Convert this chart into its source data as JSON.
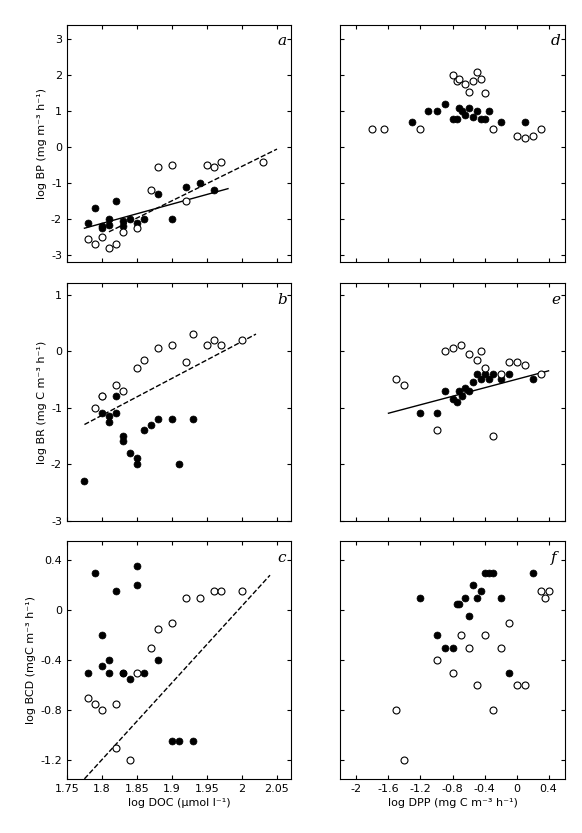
{
  "panel_a": {
    "label": "a",
    "filled": [
      [
        1.78,
        -2.1
      ],
      [
        1.79,
        -1.7
      ],
      [
        1.8,
        -2.2
      ],
      [
        1.8,
        -2.25
      ],
      [
        1.81,
        -2.0
      ],
      [
        1.81,
        -2.15
      ],
      [
        1.82,
        -1.5
      ],
      [
        1.83,
        -2.05
      ],
      [
        1.83,
        -2.2
      ],
      [
        1.84,
        -2.0
      ],
      [
        1.85,
        -2.1
      ],
      [
        1.86,
        -2.0
      ],
      [
        1.88,
        -1.3
      ],
      [
        1.9,
        -2.0
      ],
      [
        1.92,
        -1.1
      ],
      [
        1.94,
        -1.0
      ],
      [
        1.96,
        -1.2
      ]
    ],
    "open": [
      [
        1.78,
        -2.55
      ],
      [
        1.79,
        -2.7
      ],
      [
        1.8,
        -2.5
      ],
      [
        1.81,
        -2.8
      ],
      [
        1.82,
        -2.7
      ],
      [
        1.83,
        -2.35
      ],
      [
        1.85,
        -2.25
      ],
      [
        1.87,
        -1.2
      ],
      [
        1.88,
        -0.55
      ],
      [
        1.9,
        -0.5
      ],
      [
        1.92,
        -1.5
      ],
      [
        1.95,
        -0.5
      ],
      [
        1.96,
        -0.55
      ],
      [
        1.97,
        -0.4
      ],
      [
        2.03,
        -0.4
      ]
    ],
    "line_solid": {
      "x": [
        1.775,
        1.98
      ],
      "y": [
        -2.25,
        -1.15
      ]
    },
    "line_dashed": {
      "x": [
        1.81,
        2.05
      ],
      "y": [
        -2.35,
        -0.05
      ]
    },
    "xlim": [
      1.75,
      2.07
    ],
    "ylim": [
      -3.2,
      3.4
    ],
    "yticks": [
      -3,
      -2,
      -1,
      0,
      1,
      2,
      3
    ],
    "ylabel": "log BP (mg m⁻³ h⁻¹)"
  },
  "panel_b": {
    "label": "b",
    "filled": [
      [
        1.775,
        -2.3
      ],
      [
        1.8,
        -1.1
      ],
      [
        1.8,
        -0.8
      ],
      [
        1.81,
        -1.15
      ],
      [
        1.81,
        -1.25
      ],
      [
        1.82,
        -0.8
      ],
      [
        1.82,
        -1.1
      ],
      [
        1.83,
        -1.5
      ],
      [
        1.83,
        -1.6
      ],
      [
        1.84,
        -1.8
      ],
      [
        1.85,
        -2.0
      ],
      [
        1.85,
        -1.9
      ],
      [
        1.86,
        -1.4
      ],
      [
        1.87,
        -1.3
      ],
      [
        1.88,
        -1.2
      ],
      [
        1.9,
        -1.2
      ],
      [
        1.91,
        -2.0
      ],
      [
        1.93,
        -1.2
      ]
    ],
    "open": [
      [
        1.79,
        -1.0
      ],
      [
        1.8,
        -0.8
      ],
      [
        1.82,
        -0.6
      ],
      [
        1.83,
        -0.7
      ],
      [
        1.85,
        -0.3
      ],
      [
        1.86,
        -0.15
      ],
      [
        1.88,
        0.05
      ],
      [
        1.9,
        0.1
      ],
      [
        1.92,
        -0.2
      ],
      [
        1.93,
        0.3
      ],
      [
        1.95,
        0.1
      ],
      [
        1.96,
        0.2
      ],
      [
        1.97,
        0.1
      ],
      [
        2.0,
        0.2
      ]
    ],
    "line_dashed": {
      "x": [
        1.775,
        2.02
      ],
      "y": [
        -1.3,
        0.3
      ]
    },
    "xlim": [
      1.75,
      2.07
    ],
    "ylim": [
      -3.0,
      1.2
    ],
    "yticks": [
      -3,
      -2,
      -1,
      0,
      1
    ],
    "ylabel": "log BR (mg C m⁻³ h⁻¹)"
  },
  "panel_c": {
    "label": "c",
    "filled": [
      [
        1.78,
        -0.5
      ],
      [
        1.79,
        0.3
      ],
      [
        1.8,
        -0.2
      ],
      [
        1.8,
        -0.45
      ],
      [
        1.81,
        -0.4
      ],
      [
        1.81,
        -0.5
      ],
      [
        1.82,
        0.15
      ],
      [
        1.83,
        -0.5
      ],
      [
        1.83,
        -0.5
      ],
      [
        1.84,
        -0.55
      ],
      [
        1.85,
        0.35
      ],
      [
        1.85,
        0.2
      ],
      [
        1.86,
        -0.5
      ],
      [
        1.88,
        -0.4
      ],
      [
        1.9,
        -1.05
      ],
      [
        1.91,
        -1.05
      ],
      [
        1.93,
        -1.05
      ]
    ],
    "open": [
      [
        1.78,
        -0.7
      ],
      [
        1.79,
        -0.75
      ],
      [
        1.8,
        -0.8
      ],
      [
        1.82,
        -0.75
      ],
      [
        1.82,
        -1.1
      ],
      [
        1.84,
        -1.2
      ],
      [
        1.85,
        -0.5
      ],
      [
        1.87,
        -0.3
      ],
      [
        1.88,
        -0.15
      ],
      [
        1.9,
        -0.1
      ],
      [
        1.92,
        0.1
      ],
      [
        1.94,
        0.1
      ],
      [
        1.96,
        0.15
      ],
      [
        1.97,
        0.15
      ],
      [
        2.0,
        0.15
      ]
    ],
    "line_dashed": {
      "x": [
        1.775,
        2.04
      ],
      "y": [
        -1.35,
        0.28
      ]
    },
    "xlim": [
      1.75,
      2.07
    ],
    "ylim": [
      -1.35,
      0.55
    ],
    "yticks": [
      -1.2,
      -0.8,
      -0.4,
      0.0,
      0.4
    ],
    "xlabel": "log DOC (μmol l⁻¹)",
    "ylabel": "log BCD (mgC m⁻³ h⁻¹)"
  },
  "panel_d": {
    "label": "d",
    "filled": [
      [
        -1.3,
        0.7
      ],
      [
        -1.1,
        1.0
      ],
      [
        -1.0,
        1.0
      ],
      [
        -0.9,
        1.2
      ],
      [
        -0.8,
        0.8
      ],
      [
        -0.75,
        0.8
      ],
      [
        -0.72,
        1.1
      ],
      [
        -0.68,
        1.0
      ],
      [
        -0.65,
        0.9
      ],
      [
        -0.6,
        1.1
      ],
      [
        -0.55,
        0.85
      ],
      [
        -0.5,
        1.0
      ],
      [
        -0.45,
        0.8
      ],
      [
        -0.4,
        0.8
      ],
      [
        -0.35,
        1.0
      ],
      [
        -0.2,
        0.7
      ],
      [
        0.1,
        0.7
      ]
    ],
    "open": [
      [
        -1.8,
        0.5
      ],
      [
        -1.65,
        0.5
      ],
      [
        -1.2,
        0.5
      ],
      [
        -0.8,
        2.0
      ],
      [
        -0.75,
        1.85
      ],
      [
        -0.72,
        1.9
      ],
      [
        -0.65,
        1.75
      ],
      [
        -0.6,
        1.55
      ],
      [
        -0.55,
        1.85
      ],
      [
        -0.5,
        2.1
      ],
      [
        -0.45,
        1.9
      ],
      [
        -0.4,
        1.5
      ],
      [
        -0.3,
        0.5
      ],
      [
        0.0,
        0.3
      ],
      [
        0.1,
        0.25
      ],
      [
        0.2,
        0.3
      ],
      [
        0.3,
        0.5
      ]
    ],
    "xlim": [
      -2.2,
      0.6
    ],
    "ylim": [
      -3.2,
      3.4
    ],
    "yticks": [
      -3,
      -2,
      -1,
      0,
      1,
      2,
      3
    ]
  },
  "panel_e": {
    "label": "e",
    "filled": [
      [
        -1.2,
        -1.1
      ],
      [
        -1.0,
        -1.1
      ],
      [
        -0.9,
        -0.7
      ],
      [
        -0.8,
        -0.85
      ],
      [
        -0.75,
        -0.9
      ],
      [
        -0.72,
        -0.7
      ],
      [
        -0.68,
        -0.8
      ],
      [
        -0.65,
        -0.65
      ],
      [
        -0.6,
        -0.7
      ],
      [
        -0.55,
        -0.55
      ],
      [
        -0.5,
        -0.4
      ],
      [
        -0.45,
        -0.5
      ],
      [
        -0.4,
        -0.4
      ],
      [
        -0.35,
        -0.5
      ],
      [
        -0.3,
        -0.4
      ],
      [
        -0.2,
        -0.5
      ],
      [
        -0.1,
        -0.4
      ],
      [
        0.2,
        -0.5
      ]
    ],
    "open": [
      [
        -1.5,
        -0.5
      ],
      [
        -1.4,
        -0.6
      ],
      [
        -1.0,
        -1.4
      ],
      [
        -0.9,
        0.0
      ],
      [
        -0.8,
        0.05
      ],
      [
        -0.7,
        0.1
      ],
      [
        -0.6,
        -0.05
      ],
      [
        -0.5,
        -0.15
      ],
      [
        -0.45,
        0.0
      ],
      [
        -0.4,
        -0.3
      ],
      [
        -0.3,
        -1.5
      ],
      [
        -0.2,
        -0.4
      ],
      [
        -0.1,
        -0.2
      ],
      [
        0.0,
        -0.2
      ],
      [
        0.1,
        -0.25
      ],
      [
        0.3,
        -0.4
      ]
    ],
    "line_solid": {
      "x": [
        -1.6,
        0.4
      ],
      "y": [
        -1.1,
        -0.35
      ]
    },
    "xlim": [
      -2.2,
      0.6
    ],
    "ylim": [
      -3.0,
      1.2
    ],
    "yticks": [
      -3,
      -2,
      -1,
      0,
      1
    ]
  },
  "panel_f": {
    "label": "f",
    "filled": [
      [
        -1.2,
        0.1
      ],
      [
        -1.0,
        -0.2
      ],
      [
        -0.9,
        -0.3
      ],
      [
        -0.8,
        -0.3
      ],
      [
        -0.75,
        0.05
      ],
      [
        -0.72,
        0.05
      ],
      [
        -0.65,
        0.1
      ],
      [
        -0.6,
        -0.05
      ],
      [
        -0.55,
        0.2
      ],
      [
        -0.5,
        0.1
      ],
      [
        -0.45,
        0.15
      ],
      [
        -0.4,
        0.3
      ],
      [
        -0.35,
        0.3
      ],
      [
        -0.3,
        0.3
      ],
      [
        -0.2,
        0.1
      ],
      [
        -0.1,
        -0.5
      ],
      [
        0.2,
        0.3
      ]
    ],
    "open": [
      [
        -1.5,
        -0.8
      ],
      [
        -1.4,
        -1.2
      ],
      [
        -1.0,
        -0.4
      ],
      [
        -0.8,
        -0.5
      ],
      [
        -0.7,
        -0.2
      ],
      [
        -0.6,
        -0.3
      ],
      [
        -0.5,
        -0.6
      ],
      [
        -0.4,
        -0.2
      ],
      [
        -0.3,
        -0.8
      ],
      [
        -0.2,
        -0.3
      ],
      [
        -0.1,
        -0.1
      ],
      [
        0.0,
        -0.6
      ],
      [
        0.1,
        -0.6
      ],
      [
        0.3,
        0.15
      ],
      [
        0.35,
        0.1
      ],
      [
        0.4,
        0.15
      ]
    ],
    "xlim": [
      -2.2,
      0.6
    ],
    "ylim": [
      -1.35,
      0.55
    ],
    "yticks": [
      -1.2,
      -0.8,
      -0.4,
      0.0,
      0.4
    ],
    "xlabel": "log DPP (mg C m⁻³ h⁻¹)"
  },
  "xticks_left": [
    1.75,
    1.8,
    1.85,
    1.9,
    1.95,
    2.0,
    2.05
  ],
  "xticklabels_left": [
    "1.75",
    "1.8",
    "1.85",
    "1.9",
    "1.95",
    "2",
    "2.05"
  ],
  "xticks_right": [
    -2.0,
    -1.6,
    -1.2,
    -0.8,
    -0.4,
    0.0,
    0.4
  ],
  "xticklabels_right": [
    "-2",
    "-1.6",
    "-1.2",
    "-0.8",
    "-0.4",
    "0",
    "0.4"
  ],
  "marker_size": 5,
  "linewidth": 1.0,
  "bg_color": "#ffffff"
}
